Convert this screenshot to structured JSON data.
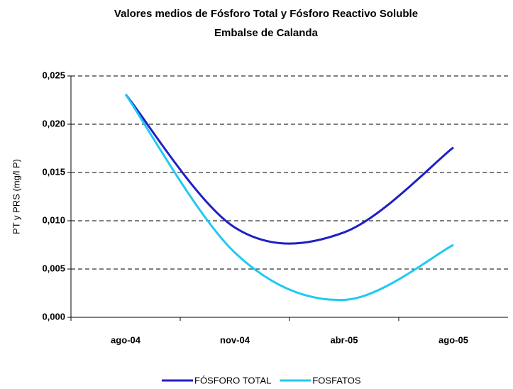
{
  "chart_data": {
    "type": "line",
    "title": "Valores medios de Fósforo Total y Fósforo Reactivo Soluble",
    "subtitle": "Embalse de Calanda",
    "y_label": "PT y PRS (mg/l P)",
    "categories": [
      "ago-04",
      "nov-04",
      "abr-05",
      "ago-05"
    ],
    "series": [
      {
        "name": "FÓSFORO TOTAL",
        "color": "#1f1fc4",
        "values": [
          0.0231,
          0.0093,
          0.0088,
          0.0176
        ]
      },
      {
        "name": "FOSFATOS",
        "color": "#1fcaf0",
        "values": [
          0.0231,
          0.0067,
          0.0018,
          0.0075
        ]
      }
    ],
    "ylim": [
      0,
      0.025
    ],
    "yticks": [
      {
        "value": 0,
        "label": "0,000"
      },
      {
        "value": 0.005,
        "label": "0,005"
      },
      {
        "value": 0.01,
        "label": "0,010"
      },
      {
        "value": 0.015,
        "label": "0,015"
      },
      {
        "value": 0.02,
        "label": "0,020"
      },
      {
        "value": 0.025,
        "label": "0,025"
      }
    ],
    "grid": true,
    "smooth": true,
    "legend": "bottom"
  }
}
